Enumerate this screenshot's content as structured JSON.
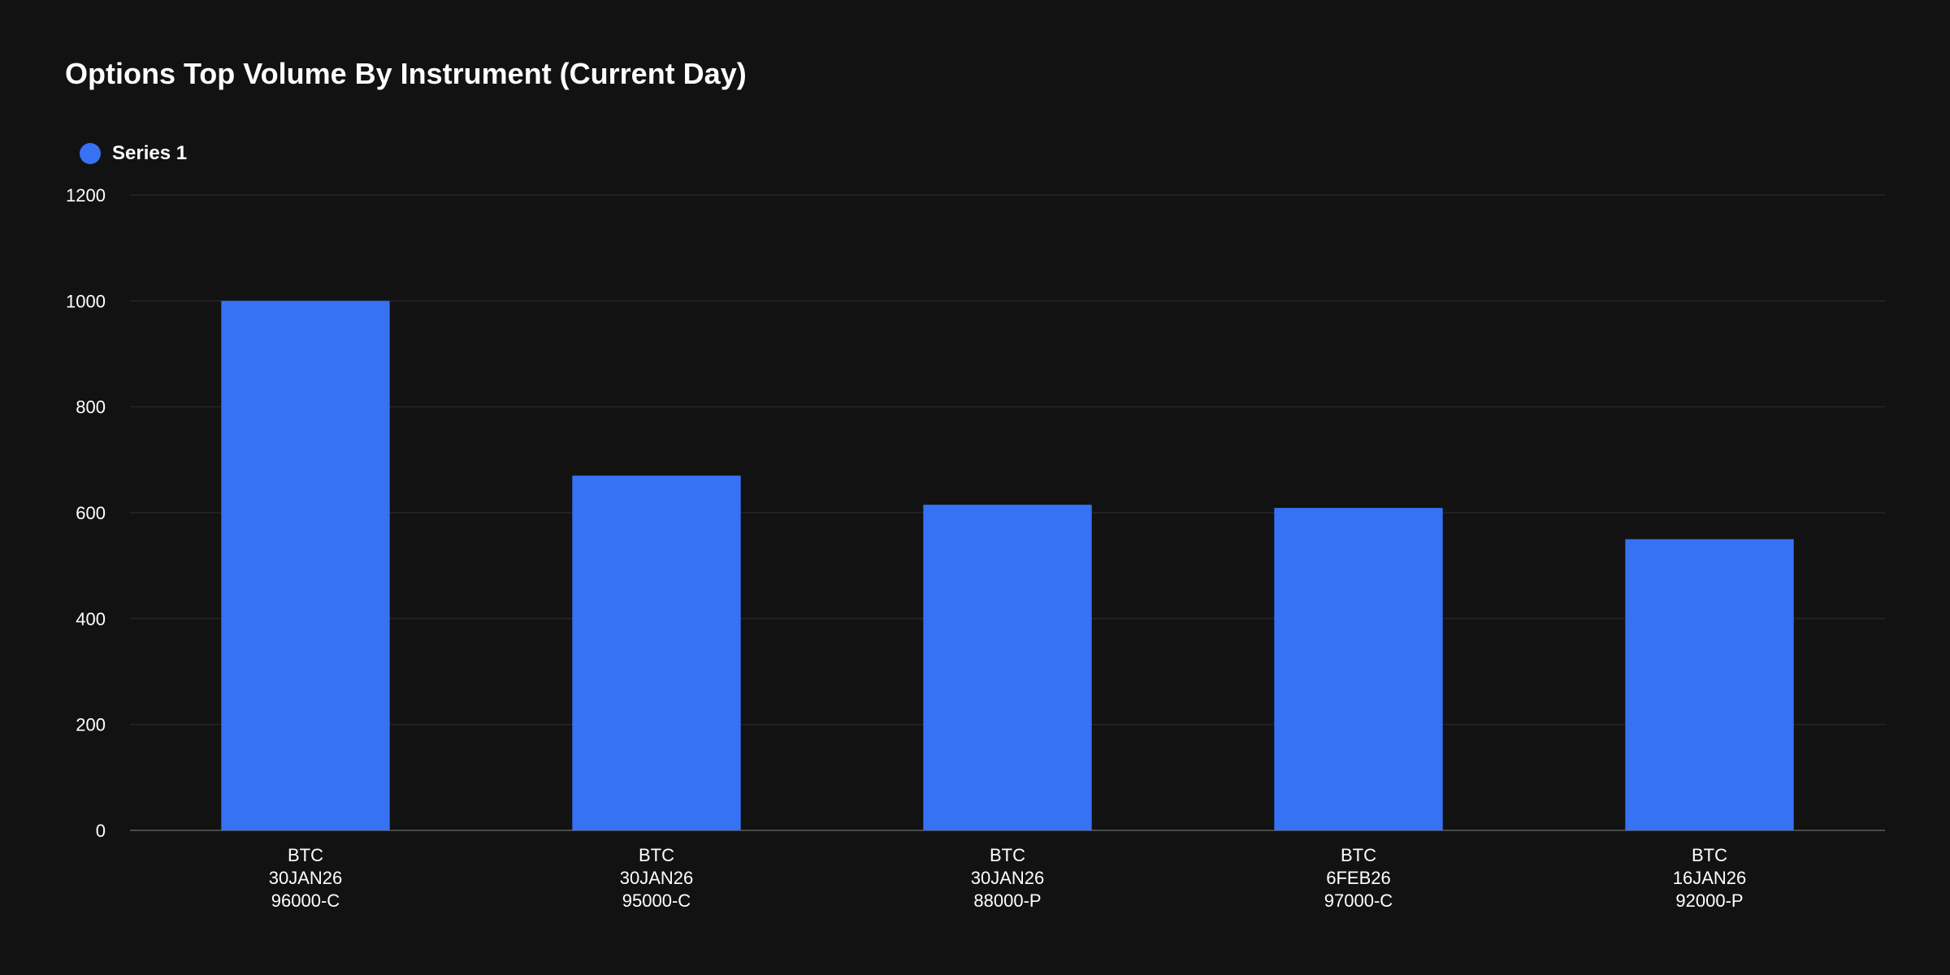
{
  "chart_data": {
    "type": "bar",
    "title": "Options Top Volume By Instrument (Current Day)",
    "categories": [
      [
        "BTC",
        "30JAN26",
        "96000-C"
      ],
      [
        "BTC",
        "30JAN26",
        "95000-C"
      ],
      [
        "BTC",
        "30JAN26",
        "88000-P"
      ],
      [
        "BTC",
        "6FEB26",
        "97000-C"
      ],
      [
        "BTC",
        "16JAN26",
        "92000-P"
      ]
    ],
    "series": [
      {
        "name": "Series 1",
        "color": "#3772f4",
        "values": [
          1000,
          670,
          615,
          609,
          550
        ]
      }
    ],
    "ylim": [
      0,
      1200
    ],
    "yticks": [
      0,
      200,
      400,
      600,
      800,
      1000,
      1200
    ],
    "grid": true,
    "legend_position": "top-left",
    "background": "#121212",
    "gridline_color": "#262626",
    "axis_color": "#4a4a4a"
  }
}
